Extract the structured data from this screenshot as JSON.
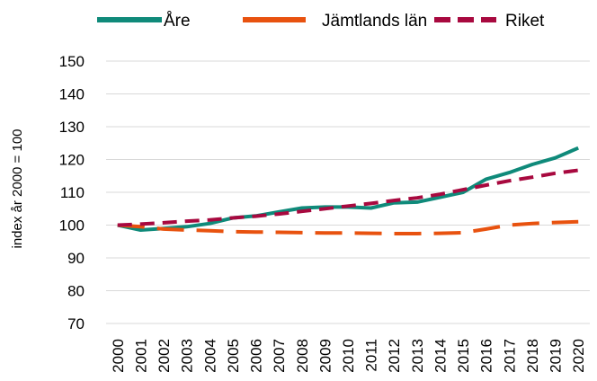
{
  "chart_data": {
    "type": "line",
    "title": "",
    "xlabel": "",
    "ylabel": "index år 2000 = 100",
    "ylim": [
      70,
      150
    ],
    "yticks": [
      "70",
      "80",
      "90",
      "100",
      "110",
      "120",
      "130",
      "140",
      "150"
    ],
    "grid": true,
    "legend_position": "top",
    "x": [
      "2000",
      "2001",
      "2002",
      "2003",
      "2004",
      "2005",
      "2006",
      "2007",
      "2008",
      "2009",
      "2010",
      "2011",
      "2012",
      "2013",
      "2014",
      "2015",
      "2016",
      "2017",
      "2018",
      "2019",
      "2020"
    ],
    "series": [
      {
        "name": "Åre",
        "color": "#0f8a7a",
        "style": "solid",
        "values": [
          100,
          98.5,
          99,
          99.5,
          100.5,
          102.2,
          102.8,
          104,
          105.2,
          105.5,
          105.5,
          105.2,
          106.8,
          107,
          108.5,
          110,
          114,
          116,
          118.5,
          120.5,
          123.5
        ]
      },
      {
        "name": "Jämtlands län",
        "color": "#e8520f",
        "style": "dashed",
        "values": [
          100,
          99.5,
          98.8,
          98.5,
          98.3,
          98,
          97.9,
          97.8,
          97.7,
          97.6,
          97.6,
          97.5,
          97.4,
          97.4,
          97.5,
          97.7,
          98.8,
          100,
          100.5,
          100.8,
          101
        ]
      },
      {
        "name": "Riket",
        "color": "#a8093f",
        "style": "dashed",
        "values": [
          100,
          100.3,
          100.7,
          101.2,
          101.6,
          102.2,
          102.7,
          103.4,
          104.2,
          105,
          105.8,
          106.6,
          107.5,
          108.3,
          109.4,
          110.8,
          112.2,
          113.5,
          114.6,
          115.8,
          116.7
        ]
      }
    ]
  }
}
